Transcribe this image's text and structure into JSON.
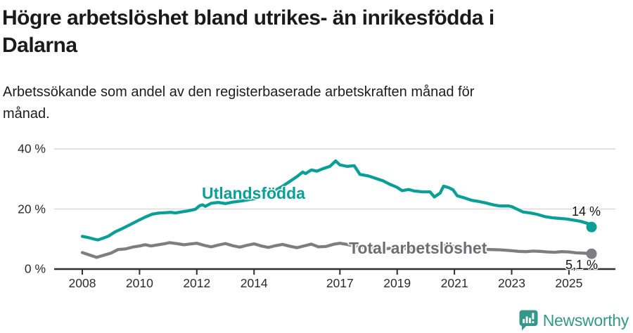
{
  "header": {
    "title": "Högre arbetslöshet bland utrikes- än inrikesfödda i Dalarna",
    "title_lines": [
      "Högre arbetslöshet bland utrikes- än inrikesfödda i",
      "Dalarna"
    ],
    "subtitle_lines": [
      "Arbetssökande som andel av den registerbaserade arbetskraften månad för",
      "månad."
    ]
  },
  "chart_data": {
    "type": "line",
    "unit": "%",
    "x_ticks": [
      2008,
      2010,
      2012,
      2014,
      2017,
      2019,
      2021,
      2023,
      2025
    ],
    "x_tick_labels": [
      "2008",
      "2010",
      "2012",
      "2014",
      "2017",
      "2019",
      "2021",
      "2023",
      "2025"
    ],
    "y_ticks": [
      0,
      20,
      40
    ],
    "y_tick_labels": [
      "0 %",
      "20 %",
      "40 %"
    ],
    "xlim": [
      2007.85,
      2026.3
    ],
    "ylim": [
      0,
      43
    ],
    "grid": "horizontal-only",
    "legend_position": "inline-labels",
    "series": [
      {
        "name": "Utlandsfödda",
        "color": "#0a9f96",
        "end_label": "14 %",
        "end_value": 14,
        "points": [
          [
            2008.0,
            10.9
          ],
          [
            2008.2,
            10.5
          ],
          [
            2008.45,
            9.9
          ],
          [
            2008.55,
            9.7
          ],
          [
            2008.7,
            10.2
          ],
          [
            2008.9,
            10.9
          ],
          [
            2009.15,
            12.4
          ],
          [
            2009.4,
            13.5
          ],
          [
            2009.65,
            14.7
          ],
          [
            2009.9,
            15.9
          ],
          [
            2010.0,
            16.4
          ],
          [
            2010.2,
            17.3
          ],
          [
            2010.45,
            18.3
          ],
          [
            2010.7,
            18.7
          ],
          [
            2010.95,
            18.8
          ],
          [
            2011.1,
            18.9
          ],
          [
            2011.25,
            18.7
          ],
          [
            2011.45,
            19.0
          ],
          [
            2011.7,
            19.4
          ],
          [
            2011.95,
            19.9
          ],
          [
            2012.1,
            21.1
          ],
          [
            2012.2,
            21.4
          ],
          [
            2012.3,
            20.9
          ],
          [
            2012.5,
            21.9
          ],
          [
            2012.75,
            22.2
          ],
          [
            2013.0,
            21.8
          ],
          [
            2013.25,
            22.3
          ],
          [
            2013.5,
            22.6
          ],
          [
            2013.75,
            23.0
          ],
          [
            2014.0,
            23.4
          ],
          [
            2014.25,
            24.1
          ],
          [
            2014.5,
            25.1
          ],
          [
            2014.75,
            26.3
          ],
          [
            2015.0,
            27.6
          ],
          [
            2015.25,
            29.2
          ],
          [
            2015.5,
            30.8
          ],
          [
            2015.7,
            32.3
          ],
          [
            2015.8,
            31.8
          ],
          [
            2016.0,
            33.0
          ],
          [
            2016.2,
            32.6
          ],
          [
            2016.4,
            33.4
          ],
          [
            2016.65,
            34.2
          ],
          [
            2016.85,
            36.0
          ],
          [
            2017.0,
            34.7
          ],
          [
            2017.25,
            34.2
          ],
          [
            2017.5,
            34.4
          ],
          [
            2017.7,
            31.5
          ],
          [
            2018.0,
            31.0
          ],
          [
            2018.25,
            30.2
          ],
          [
            2018.5,
            29.4
          ],
          [
            2018.75,
            28.2
          ],
          [
            2019.0,
            27.2
          ],
          [
            2019.17,
            26.1
          ],
          [
            2019.4,
            26.5
          ],
          [
            2019.6,
            26.0
          ],
          [
            2019.9,
            25.7
          ],
          [
            2020.15,
            25.7
          ],
          [
            2020.3,
            24.0
          ],
          [
            2020.5,
            25.3
          ],
          [
            2020.62,
            27.6
          ],
          [
            2020.8,
            27.1
          ],
          [
            2020.95,
            26.4
          ],
          [
            2021.1,
            24.4
          ],
          [
            2021.35,
            23.7
          ],
          [
            2021.6,
            22.9
          ],
          [
            2021.85,
            22.5
          ],
          [
            2022.1,
            22.0
          ],
          [
            2022.35,
            21.4
          ],
          [
            2022.6,
            21.0
          ],
          [
            2022.9,
            21.0
          ],
          [
            2023.0,
            20.8
          ],
          [
            2023.2,
            19.9
          ],
          [
            2023.4,
            19.0
          ],
          [
            2023.65,
            18.7
          ],
          [
            2023.9,
            18.2
          ],
          [
            2024.15,
            17.5
          ],
          [
            2024.4,
            17.1
          ],
          [
            2024.65,
            16.9
          ],
          [
            2024.9,
            16.7
          ],
          [
            2025.15,
            16.3
          ],
          [
            2025.4,
            15.9
          ],
          [
            2025.65,
            15.2
          ],
          [
            2025.79,
            14.0
          ]
        ]
      },
      {
        "name": "Total arbetslöshet",
        "color": "#7e7e82",
        "end_label": "5,1 %",
        "end_value": 5.1,
        "points": [
          [
            2008.0,
            5.5
          ],
          [
            2008.25,
            4.7
          ],
          [
            2008.5,
            3.9
          ],
          [
            2008.75,
            4.6
          ],
          [
            2009.0,
            5.3
          ],
          [
            2009.25,
            6.5
          ],
          [
            2009.5,
            6.7
          ],
          [
            2009.75,
            7.3
          ],
          [
            2010.0,
            7.7
          ],
          [
            2010.2,
            8.1
          ],
          [
            2010.4,
            7.7
          ],
          [
            2010.65,
            8.1
          ],
          [
            2010.9,
            8.5
          ],
          [
            2011.05,
            8.8
          ],
          [
            2011.3,
            8.5
          ],
          [
            2011.55,
            8.1
          ],
          [
            2011.8,
            8.4
          ],
          [
            2012.0,
            8.6
          ],
          [
            2012.25,
            7.9
          ],
          [
            2012.5,
            7.4
          ],
          [
            2012.75,
            8.0
          ],
          [
            2013.0,
            8.5
          ],
          [
            2013.25,
            7.8
          ],
          [
            2013.5,
            7.3
          ],
          [
            2013.75,
            7.9
          ],
          [
            2014.0,
            8.4
          ],
          [
            2014.25,
            7.7
          ],
          [
            2014.5,
            7.2
          ],
          [
            2014.75,
            7.8
          ],
          [
            2015.0,
            8.2
          ],
          [
            2015.25,
            7.6
          ],
          [
            2015.5,
            7.1
          ],
          [
            2015.75,
            7.7
          ],
          [
            2016.0,
            8.3
          ],
          [
            2016.25,
            7.4
          ],
          [
            2016.5,
            7.5
          ],
          [
            2016.8,
            8.3
          ],
          [
            2017.0,
            8.6
          ],
          [
            2017.25,
            8.2
          ],
          [
            2017.5,
            7.7
          ],
          [
            2017.75,
            7.3
          ],
          [
            2018.0,
            7.2
          ],
          [
            2018.25,
            6.9
          ],
          [
            2018.5,
            6.7
          ],
          [
            2018.75,
            6.9
          ],
          [
            2019.0,
            7.0
          ],
          [
            2019.25,
            6.8
          ],
          [
            2019.5,
            6.7
          ],
          [
            2019.75,
            6.9
          ],
          [
            2020.0,
            7.0
          ],
          [
            2020.3,
            7.5
          ],
          [
            2020.6,
            7.9
          ],
          [
            2020.85,
            7.7
          ],
          [
            2021.0,
            7.5
          ],
          [
            2021.25,
            7.2
          ],
          [
            2021.5,
            6.9
          ],
          [
            2021.75,
            6.7
          ],
          [
            2022.0,
            6.6
          ],
          [
            2022.25,
            6.5
          ],
          [
            2022.6,
            6.4
          ],
          [
            2022.9,
            6.2
          ],
          [
            2023.0,
            6.1
          ],
          [
            2023.25,
            5.9
          ],
          [
            2023.5,
            5.8
          ],
          [
            2023.75,
            6.0
          ],
          [
            2024.0,
            5.9
          ],
          [
            2024.25,
            5.7
          ],
          [
            2024.5,
            5.6
          ],
          [
            2024.75,
            5.8
          ],
          [
            2025.0,
            5.7
          ],
          [
            2025.25,
            5.4
          ],
          [
            2025.5,
            5.3
          ],
          [
            2025.79,
            5.1
          ]
        ]
      }
    ],
    "colors": {
      "accent_teal": "#0a9f96",
      "neutral_gray": "#7e7e82",
      "gridline": "#d9d9d9",
      "axis": "#2f2f2f"
    }
  },
  "branding": {
    "logo_text": "Newsworthy",
    "logo_color": "#35978a"
  }
}
